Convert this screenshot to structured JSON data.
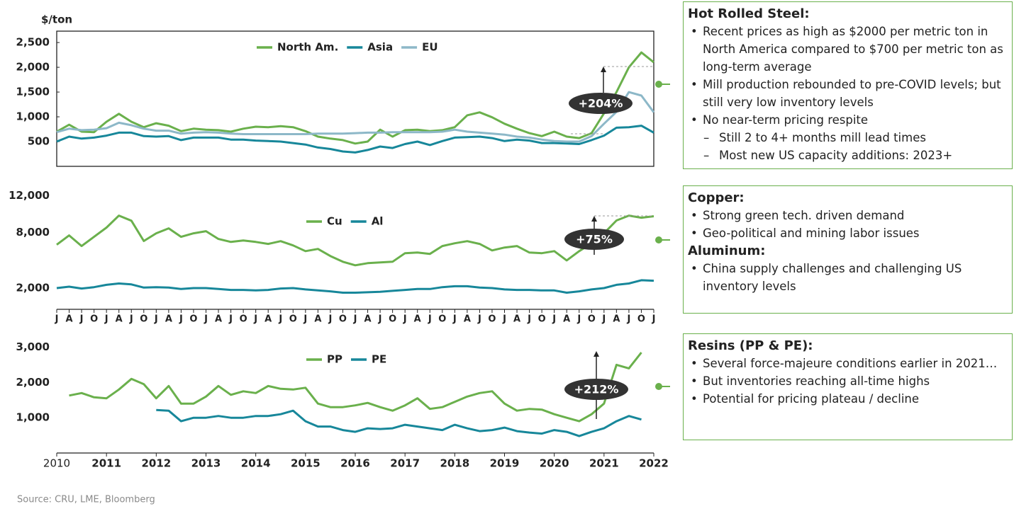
{
  "chart_data": [
    {
      "type": "line",
      "ylabel": "$/ton",
      "legend": "top",
      "annotation": "+204%",
      "x": [
        2010,
        2010.25,
        2010.5,
        2010.75,
        2011,
        2011.25,
        2011.5,
        2011.75,
        2012,
        2012.25,
        2012.5,
        2012.75,
        2013,
        2013.25,
        2013.5,
        2013.75,
        2014,
        2014.25,
        2014.5,
        2014.75,
        2015,
        2015.25,
        2015.5,
        2015.75,
        2016,
        2016.25,
        2016.5,
        2016.75,
        2017,
        2017.25,
        2017.5,
        2017.75,
        2018,
        2018.25,
        2018.5,
        2018.75,
        2019,
        2019.25,
        2019.5,
        2019.75,
        2020,
        2020.25,
        2020.5,
        2020.75,
        2021,
        2021.25,
        2021.5,
        2021.75,
        2022
      ],
      "xlim": [
        2010,
        2022
      ],
      "ylim": [
        0,
        2730
      ],
      "yticks": [
        500,
        {
          "value": 1000,
          "label": "1,000"
        },
        {
          "value": 1500,
          "label": "1,500"
        },
        {
          "value": 2000,
          "label": "2,000"
        },
        {
          "value": 2500,
          "label": "2,500"
        }
      ],
      "series": [
        {
          "name": "North Am.",
          "color": "#6ab04c",
          "values": [
            700,
            840,
            700,
            690,
            900,
            1060,
            900,
            790,
            870,
            820,
            710,
            760,
            740,
            730,
            700,
            760,
            800,
            790,
            810,
            790,
            710,
            600,
            560,
            530,
            460,
            500,
            740,
            600,
            730,
            740,
            710,
            730,
            790,
            1030,
            1090,
            990,
            860,
            760,
            670,
            610,
            700,
            600,
            570,
            670,
            1070,
            1500,
            2000,
            2300,
            2100
          ]
        },
        {
          "name": "Asia",
          "color": "#17879a",
          "values": [
            500,
            600,
            560,
            580,
            620,
            680,
            680,
            610,
            600,
            610,
            530,
            580,
            580,
            580,
            540,
            540,
            520,
            510,
            500,
            470,
            440,
            380,
            350,
            300,
            280,
            330,
            400,
            370,
            450,
            500,
            430,
            510,
            580,
            590,
            600,
            570,
            510,
            540,
            520,
            470,
            470,
            460,
            450,
            530,
            620,
            780,
            790,
            820,
            680
          ]
        },
        {
          "name": "EU",
          "color": "#8db8c8",
          "values": [
            690,
            760,
            730,
            740,
            770,
            880,
            830,
            760,
            720,
            720,
            660,
            680,
            690,
            680,
            660,
            650,
            650,
            650,
            650,
            650,
            650,
            660,
            660,
            660,
            670,
            680,
            680,
            690,
            690,
            690,
            690,
            700,
            740,
            700,
            680,
            660,
            640,
            600,
            580,
            540,
            510,
            500,
            500,
            610,
            860,
            1100,
            1500,
            1430,
            1090
          ]
        }
      ]
    },
    {
      "type": "line",
      "legend": "top",
      "annotation": "+75%",
      "x": [
        2010,
        2010.25,
        2010.5,
        2010.75,
        2011,
        2011.25,
        2011.5,
        2011.75,
        2012,
        2012.25,
        2012.5,
        2012.75,
        2013,
        2013.25,
        2013.5,
        2013.75,
        2014,
        2014.25,
        2014.5,
        2014.75,
        2015,
        2015.25,
        2015.5,
        2015.75,
        2016,
        2016.25,
        2016.5,
        2016.75,
        2017,
        2017.25,
        2017.5,
        2017.75,
        2018,
        2018.25,
        2018.5,
        2018.75,
        2019,
        2019.25,
        2019.5,
        2019.75,
        2020,
        2020.25,
        2020.5,
        2020.75,
        2021,
        2021.25,
        2021.5,
        2021.75,
        2022
      ],
      "xlim": [
        2010,
        2022
      ],
      "ylim": [
        -300,
        12500
      ],
      "xticks": [
        {
          "value": 2010,
          "label": "J"
        },
        {
          "value": 2010.25,
          "label": "A"
        },
        {
          "value": 2010.5,
          "label": "J"
        },
        {
          "value": 2010.75,
          "label": "O"
        },
        {
          "value": 2011,
          "label": "J"
        },
        {
          "value": 2011.25,
          "label": "A"
        },
        {
          "value": 2011.5,
          "label": "J"
        },
        {
          "value": 2011.75,
          "label": "O"
        },
        {
          "value": 2012,
          "label": "J"
        },
        {
          "value": 2012.25,
          "label": "A"
        },
        {
          "value": 2012.5,
          "label": "J"
        },
        {
          "value": 2012.75,
          "label": "O"
        },
        {
          "value": 2013,
          "label": "J"
        },
        {
          "value": 2013.25,
          "label": "A"
        },
        {
          "value": 2013.5,
          "label": "J"
        },
        {
          "value": 2013.75,
          "label": "O"
        },
        {
          "value": 2014,
          "label": "J"
        },
        {
          "value": 2014.25,
          "label": "A"
        },
        {
          "value": 2014.5,
          "label": "J"
        },
        {
          "value": 2014.75,
          "label": "O"
        },
        {
          "value": 2015,
          "label": "J"
        },
        {
          "value": 2015.25,
          "label": "A"
        },
        {
          "value": 2015.5,
          "label": "J"
        },
        {
          "value": 2015.75,
          "label": "O"
        },
        {
          "value": 2016,
          "label": "J"
        },
        {
          "value": 2016.25,
          "label": "A"
        },
        {
          "value": 2016.5,
          "label": "J"
        },
        {
          "value": 2016.75,
          "label": "O"
        },
        {
          "value": 2017,
          "label": "J"
        },
        {
          "value": 2017.25,
          "label": "A"
        },
        {
          "value": 2017.5,
          "label": "J"
        },
        {
          "value": 2017.75,
          "label": "O"
        },
        {
          "value": 2018,
          "label": "J"
        },
        {
          "value": 2018.25,
          "label": "A"
        },
        {
          "value": 2018.5,
          "label": "J"
        },
        {
          "value": 2018.75,
          "label": "O"
        },
        {
          "value": 2019,
          "label": "J"
        },
        {
          "value": 2019.25,
          "label": "A"
        },
        {
          "value": 2019.5,
          "label": "J"
        },
        {
          "value": 2019.75,
          "label": "O"
        },
        {
          "value": 2020,
          "label": "J"
        },
        {
          "value": 2020.25,
          "label": "A"
        },
        {
          "value": 2020.5,
          "label": "J"
        },
        {
          "value": 2020.75,
          "label": "O"
        },
        {
          "value": 2021,
          "label": "J"
        },
        {
          "value": 2021.25,
          "label": "A"
        },
        {
          "value": 2021.5,
          "label": "J"
        },
        {
          "value": 2021.75,
          "label": "O"
        },
        {
          "value": 2022,
          "label": "J"
        }
      ],
      "yticks": [
        {
          "value": 2000,
          "label": "2,000"
        },
        {
          "value": 8000,
          "label": "8,000"
        },
        {
          "value": 12000,
          "label": "12,000"
        }
      ],
      "series": [
        {
          "name": "Cu",
          "color": "#6ab04c",
          "values": [
            6700,
            7700,
            6550,
            7550,
            8550,
            9850,
            9300,
            7100,
            7930,
            8470,
            7550,
            7930,
            8160,
            7320,
            7000,
            7160,
            7000,
            6780,
            7080,
            6620,
            6000,
            6240,
            5470,
            4850,
            4470,
            4700,
            4780,
            4850,
            5780,
            5850,
            5700,
            6550,
            6850,
            7080,
            6780,
            6080,
            6390,
            6550,
            5850,
            5780,
            6000,
            5000,
            6000,
            6850,
            7930,
            9320,
            9850,
            9620,
            9780
          ]
        },
        {
          "name": "Al",
          "color": "#17879a",
          "values": [
            2000,
            2150,
            1950,
            2100,
            2350,
            2500,
            2400,
            2050,
            2100,
            2050,
            1900,
            2000,
            2000,
            1900,
            1800,
            1800,
            1750,
            1800,
            1950,
            2000,
            1850,
            1750,
            1650,
            1500,
            1500,
            1550,
            1600,
            1700,
            1800,
            1900,
            1900,
            2100,
            2200,
            2200,
            2050,
            2000,
            1850,
            1800,
            1800,
            1750,
            1750,
            1500,
            1650,
            1850,
            2000,
            2350,
            2500,
            2850,
            2800
          ]
        }
      ]
    },
    {
      "type": "line",
      "legend": "top",
      "annotation": "+212%",
      "x": [
        2010,
        2010.25,
        2010.5,
        2010.75,
        2011,
        2011.25,
        2011.5,
        2011.75,
        2012,
        2012.25,
        2012.5,
        2012.75,
        2013,
        2013.25,
        2013.5,
        2013.75,
        2014,
        2014.25,
        2014.5,
        2014.75,
        2015,
        2015.25,
        2015.5,
        2015.75,
        2016,
        2016.25,
        2016.5,
        2016.75,
        2017,
        2017.25,
        2017.5,
        2017.75,
        2018,
        2018.25,
        2018.5,
        2018.75,
        2019,
        2019.25,
        2019.5,
        2019.75,
        2020,
        2020.25,
        2020.5,
        2020.75,
        2021,
        2021.25,
        2021.5,
        2021.75,
        2022
      ],
      "xlim": [
        2010,
        2022
      ],
      "ylim": [
        0,
        3150
      ],
      "xticks": [
        2010,
        2011,
        2012,
        2013,
        2014,
        2015,
        2016,
        2017,
        2018,
        2019,
        2020,
        2021,
        2022
      ],
      "yticks": [
        {
          "value": 1000,
          "label": "1,000"
        },
        {
          "value": 2000,
          "label": "2,000"
        },
        {
          "value": 3000,
          "label": "3,000"
        }
      ],
      "series": [
        {
          "name": "PP",
          "color": "#6ab04c",
          "values": [
            null,
            1630,
            1700,
            1580,
            1550,
            1800,
            2100,
            1950,
            1550,
            1900,
            1400,
            1400,
            1600,
            1900,
            1650,
            1750,
            1700,
            1900,
            1820,
            1800,
            1850,
            1400,
            1300,
            1300,
            1350,
            1420,
            1300,
            1200,
            1350,
            1550,
            1250,
            1300,
            1450,
            1600,
            1700,
            1750,
            1400,
            1200,
            1250,
            1230,
            1100,
            1000,
            900,
            1100,
            1400,
            2500,
            2400,
            2850,
            null
          ]
        },
        {
          "name": "PE",
          "color": "#17879a",
          "values": [
            null,
            null,
            null,
            null,
            null,
            null,
            null,
            null,
            1220,
            1200,
            900,
            1000,
            1000,
            1050,
            1000,
            1000,
            1050,
            1050,
            1100,
            1200,
            900,
            750,
            750,
            650,
            600,
            700,
            680,
            700,
            800,
            750,
            700,
            650,
            800,
            700,
            620,
            650,
            720,
            620,
            580,
            550,
            650,
            600,
            480,
            600,
            700,
            900,
            1050,
            950,
            null
          ]
        }
      ]
    }
  ],
  "panels": [
    {
      "sections": [
        {
          "heading": "Hot Rolled Steel:",
          "bullets": [
            {
              "text": "Recent prices as high as $2000 per metric ton in North America compared to $700 per metric ton as long-term average"
            },
            {
              "text": "Mill production rebounded to pre-COVID levels; but still very low inventory levels"
            },
            {
              "text": "No near-term pricing respite",
              "sub": [
                "Still 2 to 4+ months mill lead times",
                "Most new US capacity additions: 2023+"
              ]
            }
          ]
        }
      ]
    },
    {
      "sections": [
        {
          "heading": "Copper:",
          "bullets": [
            {
              "text": "Strong green tech. driven demand"
            },
            {
              "text": "Geo-political and mining labor issues"
            }
          ]
        },
        {
          "heading": "Aluminum:",
          "bullets": [
            {
              "text": "China supply challenges and challenging US inventory levels"
            }
          ]
        }
      ]
    },
    {
      "sections": [
        {
          "heading": "Resins (PP & PE):",
          "bullets": [
            {
              "text": "Several force-majeure conditions earlier in 2021…"
            },
            {
              "text": "But inventories reaching all-time highs"
            },
            {
              "text": "Potential for pricing plateau / decline"
            }
          ]
        }
      ]
    }
  ],
  "source": "Source: CRU, LME, Bloomberg"
}
